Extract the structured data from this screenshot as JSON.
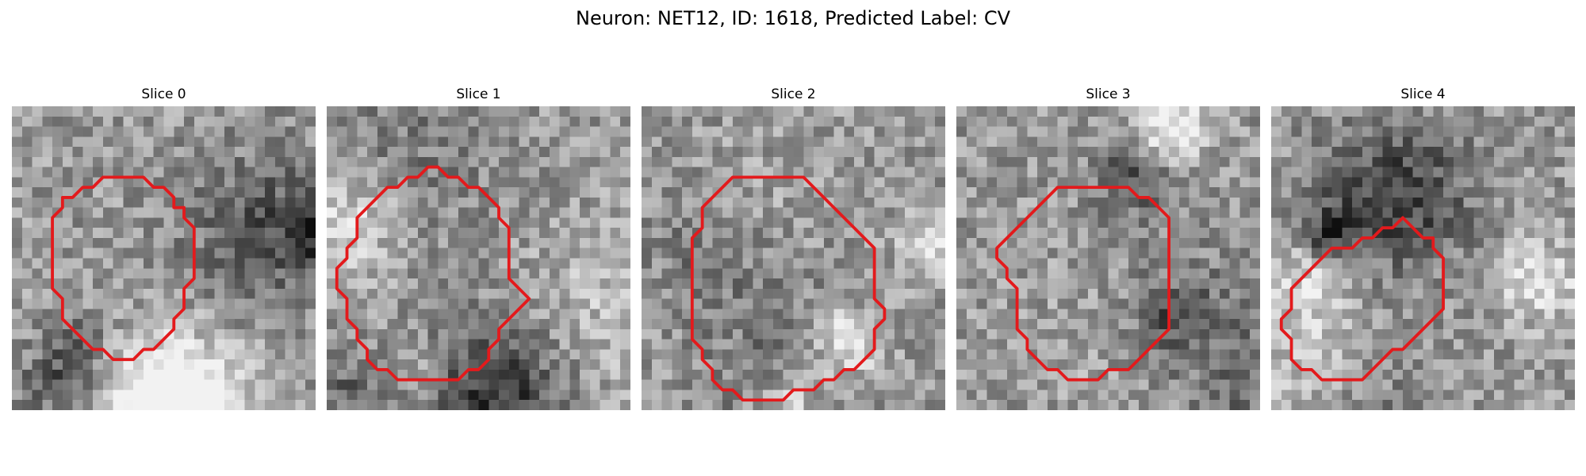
{
  "figure": {
    "title": "Neuron: NET12, ID: 1618, Predicted Label: CV",
    "panels": [
      {
        "title": "Slice 0",
        "seed": 11,
        "outline_color": "#e31a1c",
        "outline": [
          [
            10,
            7
          ],
          [
            13,
            7
          ],
          [
            14,
            8
          ],
          [
            15,
            8
          ],
          [
            16,
            9
          ],
          [
            16,
            10
          ],
          [
            17,
            10
          ],
          [
            17,
            11
          ],
          [
            18,
            12
          ],
          [
            18,
            17
          ],
          [
            17,
            18
          ],
          [
            17,
            20
          ],
          [
            16,
            21
          ],
          [
            16,
            22
          ],
          [
            15,
            23
          ],
          [
            14,
            24
          ],
          [
            13,
            24
          ],
          [
            12,
            25
          ],
          [
            10,
            25
          ],
          [
            9,
            24
          ],
          [
            8,
            24
          ],
          [
            7,
            23
          ],
          [
            6,
            22
          ],
          [
            5,
            21
          ],
          [
            5,
            19
          ],
          [
            4,
            18
          ],
          [
            4,
            11
          ],
          [
            5,
            10
          ],
          [
            5,
            9
          ],
          [
            6,
            9
          ],
          [
            7,
            8
          ],
          [
            8,
            8
          ],
          [
            9,
            7
          ]
        ]
      },
      {
        "title": "Slice 1",
        "seed": 27,
        "outline_color": "#e31a1c",
        "outline": [
          [
            9,
            7
          ],
          [
            10,
            6
          ],
          [
            11,
            6
          ],
          [
            12,
            7
          ],
          [
            13,
            7
          ],
          [
            14,
            8
          ],
          [
            15,
            8
          ],
          [
            16,
            9
          ],
          [
            17,
            10
          ],
          [
            17,
            11
          ],
          [
            18,
            12
          ],
          [
            18,
            17
          ],
          [
            19,
            18
          ],
          [
            20,
            19
          ],
          [
            19,
            20
          ],
          [
            18,
            21
          ],
          [
            17,
            22
          ],
          [
            17,
            23
          ],
          [
            16,
            24
          ],
          [
            16,
            25
          ],
          [
            15,
            26
          ],
          [
            14,
            26
          ],
          [
            13,
            27
          ],
          [
            7,
            27
          ],
          [
            6,
            26
          ],
          [
            5,
            26
          ],
          [
            4,
            25
          ],
          [
            4,
            24
          ],
          [
            3,
            23
          ],
          [
            3,
            22
          ],
          [
            2,
            21
          ],
          [
            2,
            20
          ],
          [
            2,
            19
          ],
          [
            1,
            18
          ],
          [
            1,
            16
          ],
          [
            2,
            15
          ],
          [
            2,
            14
          ],
          [
            3,
            13
          ],
          [
            3,
            11
          ],
          [
            4,
            10
          ],
          [
            5,
            9
          ],
          [
            6,
            8
          ],
          [
            7,
            8
          ],
          [
            8,
            7
          ]
        ]
      },
      {
        "title": "Slice 2",
        "seed": 43,
        "outline_color": "#e31a1c",
        "outline": [
          [
            9,
            7
          ],
          [
            16,
            7
          ],
          [
            17,
            8
          ],
          [
            18,
            9
          ],
          [
            19,
            10
          ],
          [
            20,
            11
          ],
          [
            21,
            12
          ],
          [
            22,
            13
          ],
          [
            23,
            14
          ],
          [
            23,
            19
          ],
          [
            24,
            20
          ],
          [
            24,
            21
          ],
          [
            23,
            22
          ],
          [
            23,
            24
          ],
          [
            22,
            25
          ],
          [
            21,
            26
          ],
          [
            20,
            26
          ],
          [
            19,
            27
          ],
          [
            18,
            27
          ],
          [
            17,
            28
          ],
          [
            15,
            28
          ],
          [
            14,
            29
          ],
          [
            10,
            29
          ],
          [
            9,
            28
          ],
          [
            8,
            28
          ],
          [
            7,
            27
          ],
          [
            7,
            26
          ],
          [
            6,
            25
          ],
          [
            6,
            24
          ],
          [
            5,
            23
          ],
          [
            5,
            13
          ],
          [
            6,
            12
          ],
          [
            6,
            10
          ],
          [
            7,
            9
          ],
          [
            8,
            8
          ]
        ]
      },
      {
        "title": "Slice 3",
        "seed": 59,
        "outline_color": "#e31a1c",
        "outline": [
          [
            10,
            8
          ],
          [
            17,
            8
          ],
          [
            18,
            9
          ],
          [
            19,
            9
          ],
          [
            20,
            10
          ],
          [
            21,
            11
          ],
          [
            21,
            22
          ],
          [
            20,
            23
          ],
          [
            19,
            24
          ],
          [
            18,
            25
          ],
          [
            17,
            26
          ],
          [
            15,
            26
          ],
          [
            14,
            27
          ],
          [
            11,
            27
          ],
          [
            10,
            26
          ],
          [
            9,
            26
          ],
          [
            8,
            25
          ],
          [
            7,
            24
          ],
          [
            7,
            23
          ],
          [
            6,
            22
          ],
          [
            6,
            18
          ],
          [
            5,
            17
          ],
          [
            5,
            16
          ],
          [
            4,
            15
          ],
          [
            4,
            14
          ],
          [
            5,
            13
          ],
          [
            6,
            12
          ],
          [
            6,
            12
          ],
          [
            7,
            11
          ],
          [
            8,
            10
          ],
          [
            9,
            9
          ]
        ]
      },
      {
        "title": "Slice 4",
        "seed": 73,
        "outline_color": "#e31a1c",
        "outline": [
          [
            8,
            14
          ],
          [
            9,
            13
          ],
          [
            10,
            13
          ],
          [
            11,
            12
          ],
          [
            12,
            12
          ],
          [
            13,
            11
          ],
          [
            14,
            12
          ],
          [
            15,
            13
          ],
          [
            16,
            13
          ],
          [
            16,
            14
          ],
          [
            17,
            15
          ],
          [
            17,
            20
          ],
          [
            16,
            21
          ],
          [
            15,
            22
          ],
          [
            14,
            23
          ],
          [
            13,
            24
          ],
          [
            12,
            24
          ],
          [
            11,
            25
          ],
          [
            10,
            26
          ],
          [
            9,
            27
          ],
          [
            5,
            27
          ],
          [
            4,
            26
          ],
          [
            3,
            26
          ],
          [
            2,
            25
          ],
          [
            2,
            23
          ],
          [
            1,
            22
          ],
          [
            1,
            21
          ],
          [
            2,
            20
          ],
          [
            2,
            18
          ],
          [
            3,
            17
          ],
          [
            4,
            16
          ],
          [
            5,
            15
          ],
          [
            6,
            14
          ]
        ]
      }
    ]
  }
}
